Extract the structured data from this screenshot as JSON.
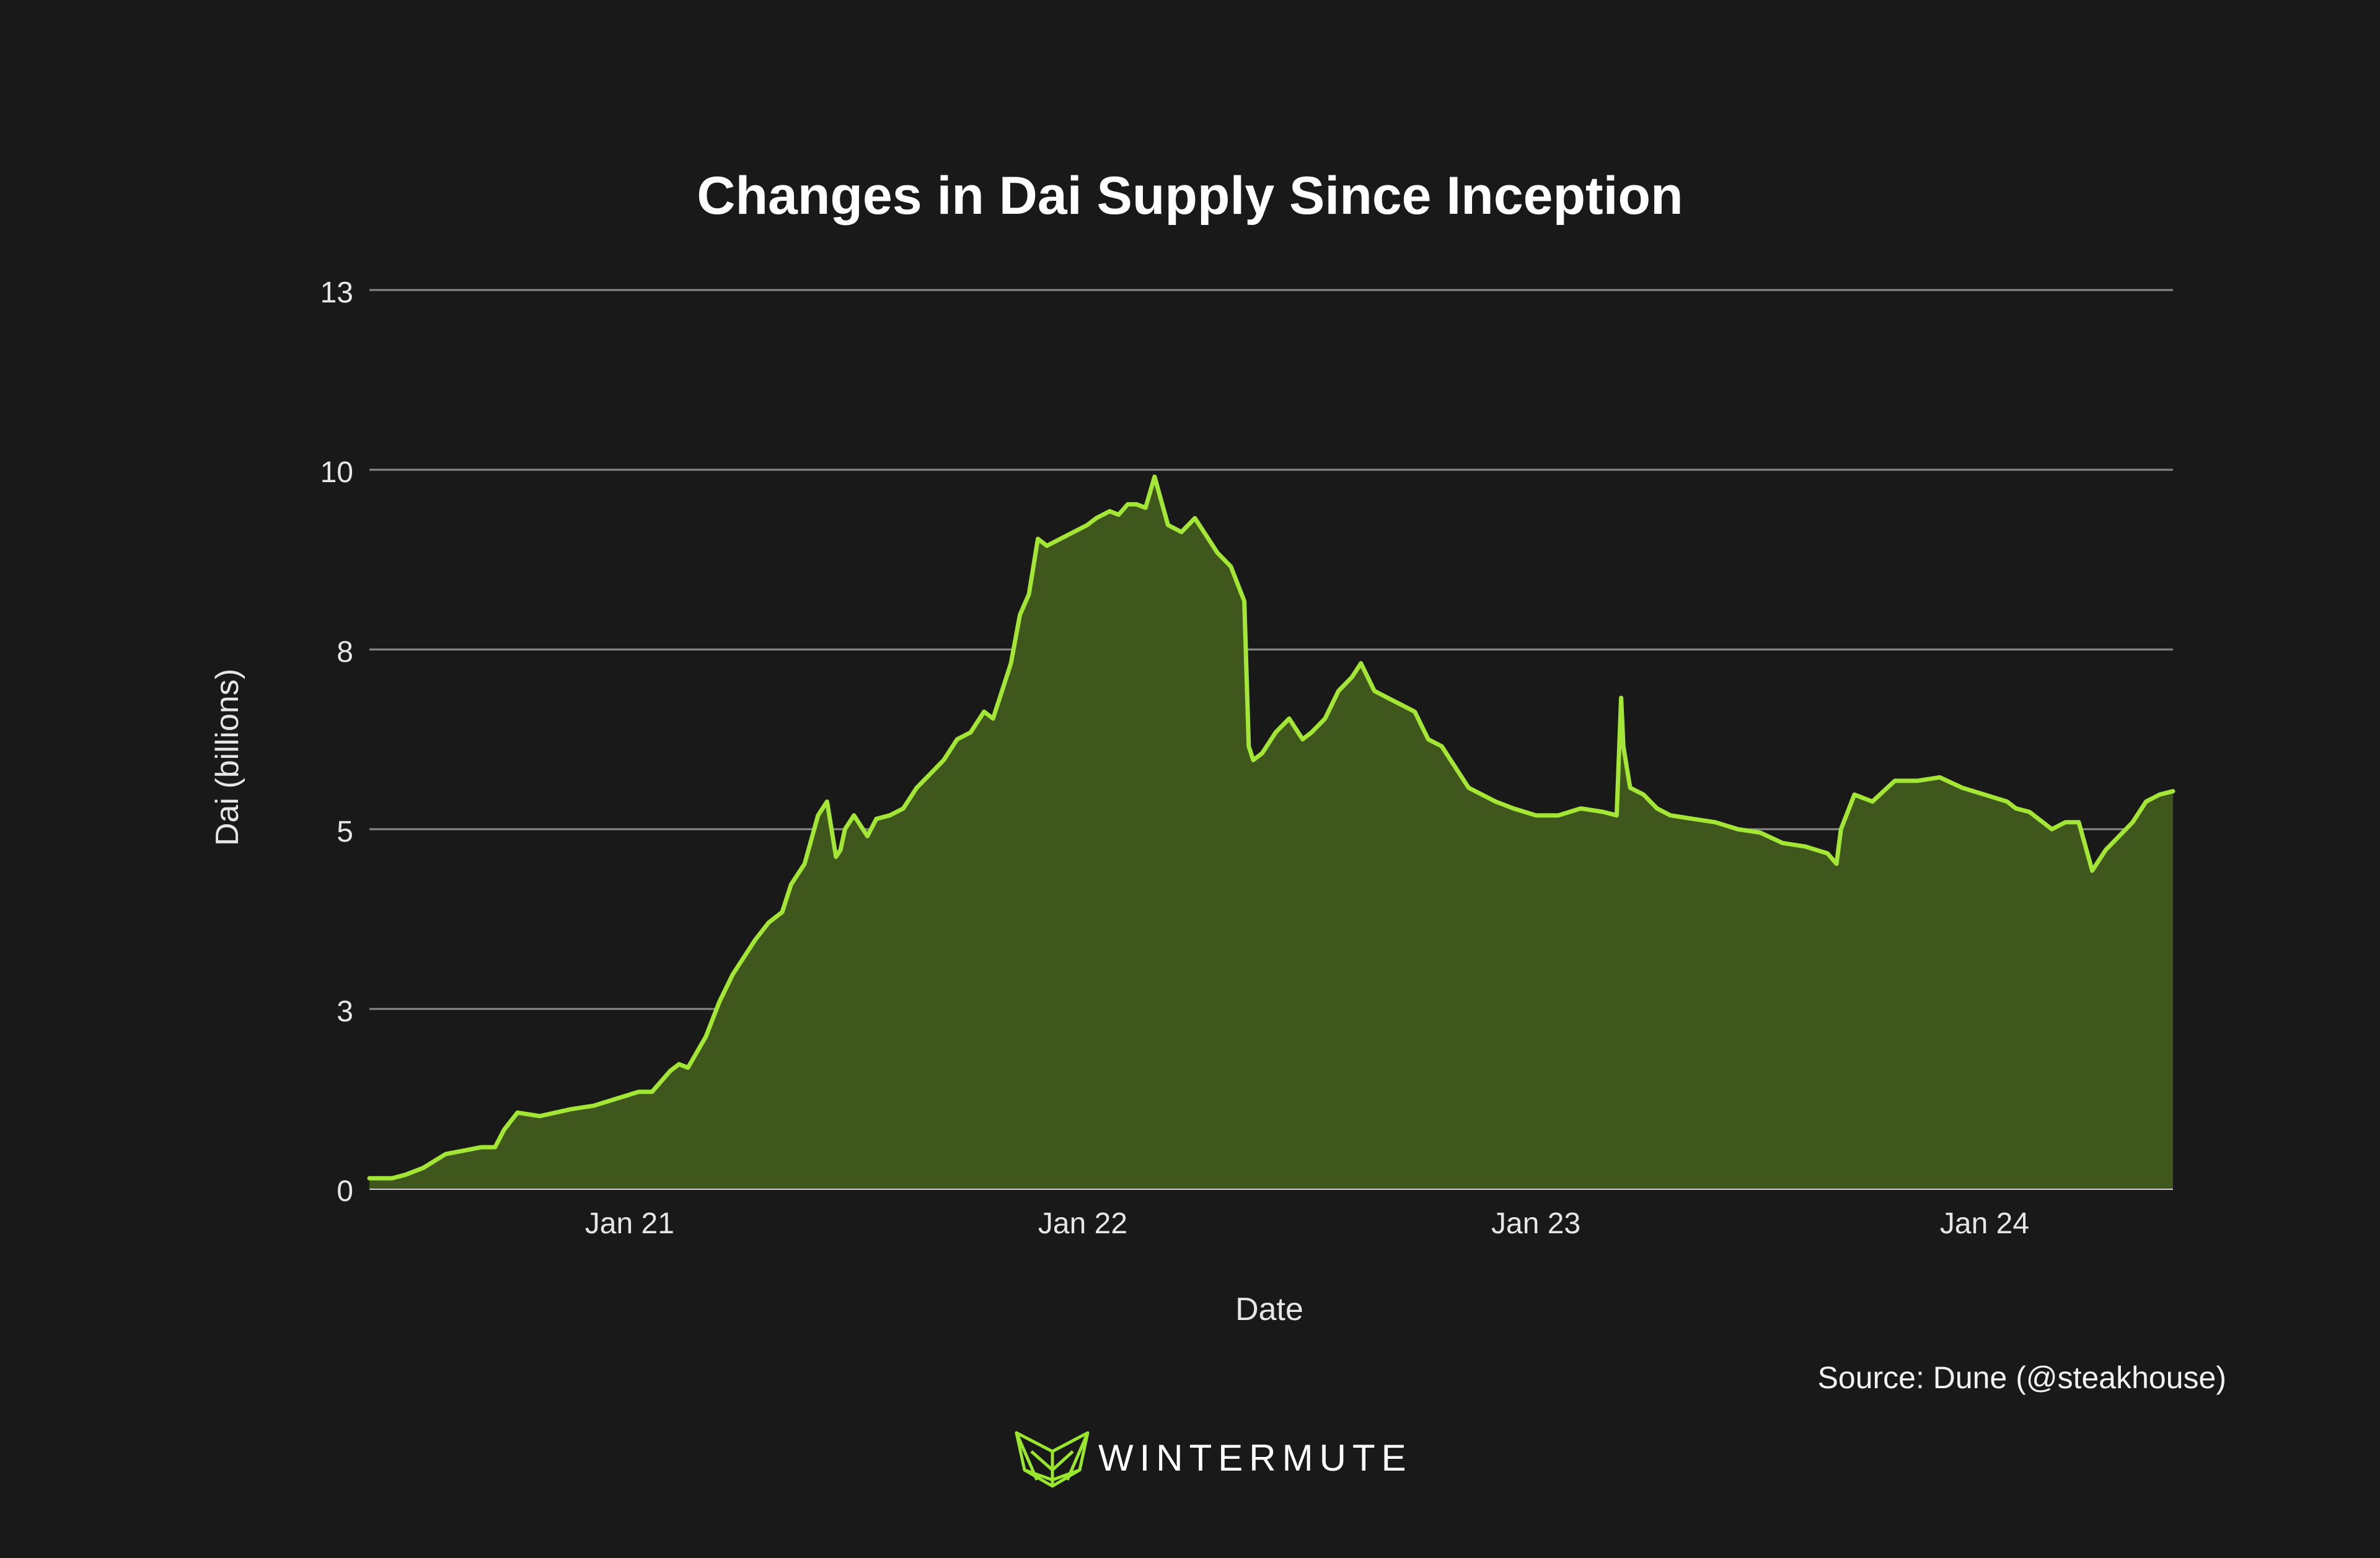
{
  "colors": {
    "background": "#191919",
    "line": "#a3e635",
    "fill": "#3f561c",
    "grid": "#8a8a8a",
    "text": "#e6e6e6",
    "logo": "#9ae62d"
  },
  "source_text": "Source: Dune (@steakhouse)",
  "brand": {
    "name": "WINTERMUTE",
    "logo_icon": "wintermute-fox-icon"
  },
  "chart_data": {
    "type": "area",
    "title": "Changes in Dai Supply Since Inception",
    "xlabel": "Date",
    "ylabel": "Dai (billions)",
    "ylim": [
      0,
      13
    ],
    "xlim": [
      2020.25,
      2024.27
    ],
    "grid": true,
    "y_ticks": [
      0,
      2.6,
      5.2,
      7.8,
      10.4,
      13
    ],
    "y_tick_labels": [
      "0",
      "3",
      "5",
      "8",
      "10",
      "13"
    ],
    "x_ticks": [
      2020.83,
      2021.84,
      2022.85,
      2023.85
    ],
    "x_tick_labels": [
      "Jan 21",
      "Jan 22",
      "Jan 23",
      "Jan 24"
    ],
    "series": [
      {
        "name": "Dai supply",
        "x": [
          2020.25,
          2020.3,
          2020.33,
          2020.37,
          2020.42,
          2020.46,
          2020.5,
          2020.53,
          2020.55,
          2020.58,
          2020.63,
          2020.7,
          2020.75,
          2020.8,
          2020.85,
          2020.88,
          2020.92,
          2020.94,
          2020.96,
          2021.0,
          2021.03,
          2021.06,
          2021.08,
          2021.11,
          2021.14,
          2021.17,
          2021.19,
          2021.22,
          2021.25,
          2021.27,
          2021.29,
          2021.3,
          2021.31,
          2021.33,
          2021.36,
          2021.38,
          2021.41,
          2021.44,
          2021.47,
          2021.5,
          2021.53,
          2021.56,
          2021.59,
          2021.62,
          2021.64,
          2021.66,
          2021.68,
          2021.7,
          2021.72,
          2021.74,
          2021.76,
          2021.79,
          2021.82,
          2021.85,
          2021.87,
          2021.9,
          2021.92,
          2021.94,
          2021.96,
          2021.98,
          2022.0,
          2022.03,
          2022.06,
          2022.09,
          2022.12,
          2022.14,
          2022.17,
          2022.2,
          2022.21,
          2022.22,
          2022.24,
          2022.27,
          2022.3,
          2022.33,
          2022.35,
          2022.38,
          2022.41,
          2022.44,
          2022.46,
          2022.49,
          2022.52,
          2022.55,
          2022.58,
          2022.61,
          2022.64,
          2022.67,
          2022.7,
          2022.73,
          2022.76,
          2022.8,
          2022.85,
          2022.9,
          2022.95,
          2023.0,
          2023.03,
          2023.04,
          2023.045,
          2023.06,
          2023.09,
          2023.12,
          2023.15,
          2023.2,
          2023.25,
          2023.3,
          2023.35,
          2023.4,
          2023.45,
          2023.5,
          2023.52,
          2023.53,
          2023.56,
          2023.6,
          2023.65,
          2023.7,
          2023.75,
          2023.8,
          2023.85,
          2023.9,
          2023.92,
          2023.95,
          2024.0,
          2024.03,
          2024.06,
          2024.09,
          2024.12,
          2024.15,
          2024.18,
          2024.21,
          2024.24,
          2024.27
        ],
        "values": [
          0.15,
          0.15,
          0.2,
          0.3,
          0.5,
          0.55,
          0.6,
          0.6,
          0.85,
          1.1,
          1.05,
          1.15,
          1.2,
          1.3,
          1.4,
          1.4,
          1.7,
          1.8,
          1.75,
          2.2,
          2.7,
          3.1,
          3.3,
          3.6,
          3.85,
          4.0,
          4.4,
          4.7,
          5.4,
          5.6,
          4.8,
          4.9,
          5.2,
          5.4,
          5.1,
          5.35,
          5.4,
          5.5,
          5.8,
          6.0,
          6.2,
          6.5,
          6.6,
          6.9,
          6.8,
          7.2,
          7.6,
          8.3,
          8.6,
          9.4,
          9.3,
          9.4,
          9.5,
          9.6,
          9.7,
          9.8,
          9.75,
          9.9,
          9.9,
          9.85,
          10.3,
          9.6,
          9.5,
          9.7,
          9.4,
          9.2,
          9.0,
          8.5,
          6.4,
          6.2,
          6.3,
          6.6,
          6.8,
          6.5,
          6.6,
          6.8,
          7.2,
          7.4,
          7.6,
          7.2,
          7.1,
          7.0,
          6.9,
          6.5,
          6.4,
          6.1,
          5.8,
          5.7,
          5.6,
          5.5,
          5.4,
          5.4,
          5.5,
          5.45,
          5.4,
          7.1,
          6.4,
          5.8,
          5.7,
          5.5,
          5.4,
          5.35,
          5.3,
          5.2,
          5.15,
          5.0,
          4.95,
          4.85,
          4.7,
          5.2,
          5.7,
          5.6,
          5.9,
          5.9,
          5.95,
          5.8,
          5.7,
          5.6,
          5.5,
          5.45,
          5.2,
          5.3,
          5.3,
          4.6,
          4.9,
          5.1,
          5.3,
          5.6,
          5.7,
          5.75
        ]
      }
    ]
  }
}
